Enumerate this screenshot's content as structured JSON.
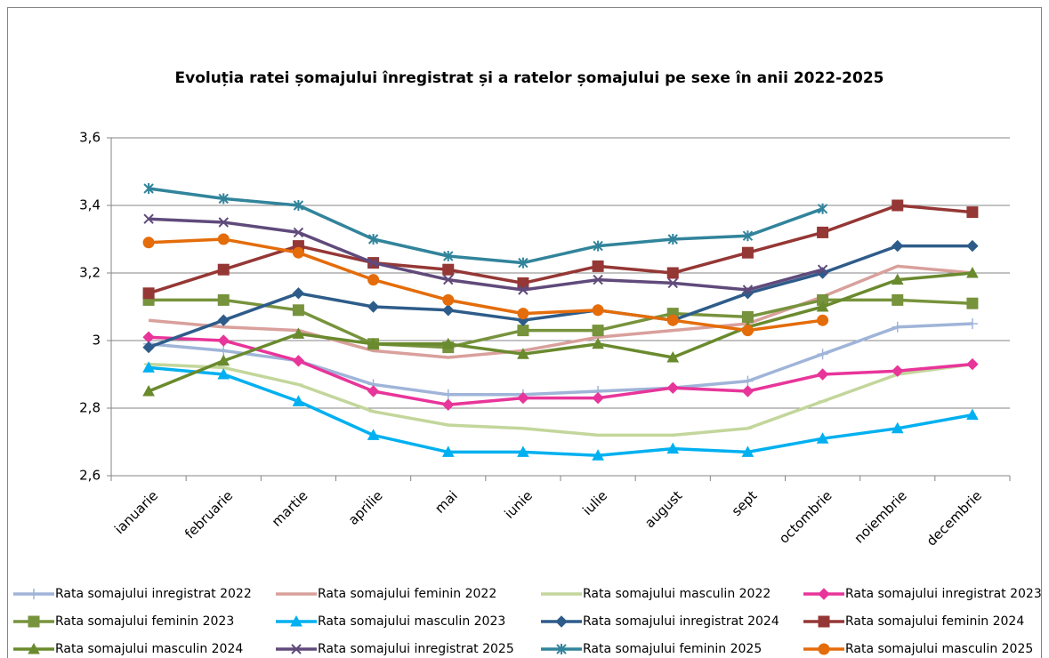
{
  "chart_data": {
    "type": "line",
    "title": "Evoluția ratei șomajului înregistrat și a ratelor șomajului pe sexe în anii 2022-2025",
    "categories": [
      "ianuarie",
      "februarie",
      "martie",
      "aprilie",
      "mai",
      "iunie",
      "iulie",
      "august",
      "sept",
      "octombrie",
      "noiembrie",
      "decembrie"
    ],
    "ylim": [
      2.6,
      3.6
    ],
    "yticks": [
      {
        "value": 2.6,
        "label": "2,6"
      },
      {
        "value": 2.8,
        "label": "2,8"
      },
      3,
      {
        "value": 3.2,
        "label": "3,2"
      },
      {
        "value": 3.4,
        "label": "3,4"
      },
      {
        "value": 3.6,
        "label": "3,6"
      }
    ],
    "grid": true,
    "legend": "bottom",
    "series": [
      {
        "name": "Rata somajului inregistrat 2022",
        "color": "#9fb4d8",
        "marker": "plus",
        "values": [
          2.99,
          2.97,
          2.94,
          2.87,
          2.84,
          2.84,
          2.85,
          2.86,
          2.88,
          2.96,
          3.04,
          3.05
        ]
      },
      {
        "name": "Rata somajului feminin 2022",
        "color": "#d9a09c",
        "marker": "none",
        "values": [
          3.06,
          3.04,
          3.03,
          2.97,
          2.95,
          2.97,
          3.01,
          3.03,
          3.05,
          3.13,
          3.22,
          3.2
        ]
      },
      {
        "name": "Rata somajului masculin 2022",
        "color": "#c3d69b",
        "marker": "dash",
        "values": [
          2.93,
          2.92,
          2.87,
          2.79,
          2.75,
          2.74,
          2.72,
          2.72,
          2.74,
          2.82,
          2.9,
          2.93
        ]
      },
      {
        "name": "Rata somajului inregistrat 2023",
        "color": "#e8359a",
        "marker": "diamond",
        "values": [
          3.01,
          3.0,
          2.94,
          2.85,
          2.81,
          2.83,
          2.83,
          2.86,
          2.85,
          2.9,
          2.91,
          2.93
        ]
      },
      {
        "name": "Rata somajului feminin 2023",
        "color": "#77933c",
        "marker": "square",
        "values": [
          3.12,
          3.12,
          3.09,
          2.99,
          2.98,
          3.03,
          3.03,
          3.08,
          3.07,
          3.12,
          3.12,
          3.11
        ]
      },
      {
        "name": "Rata somajului masculin 2023",
        "color": "#00b0f0",
        "marker": "triangle",
        "values": [
          2.92,
          2.9,
          2.82,
          2.72,
          2.67,
          2.67,
          2.66,
          2.68,
          2.67,
          2.71,
          2.74,
          2.78
        ]
      },
      {
        "name": "Rata somajului inregistrat 2024",
        "color": "#2e5c8a",
        "marker": "diamond",
        "values": [
          2.98,
          3.06,
          3.14,
          3.1,
          3.09,
          3.06,
          3.09,
          3.06,
          3.14,
          3.2,
          3.28,
          3.28
        ]
      },
      {
        "name": "Rata somajului feminin 2024",
        "color": "#953735",
        "marker": "square",
        "values": [
          3.14,
          3.21,
          3.28,
          3.23,
          3.21,
          3.17,
          3.22,
          3.2,
          3.26,
          3.32,
          3.4,
          3.38
        ]
      },
      {
        "name": "Rata somajului masculin 2024",
        "color": "#6a8a2e",
        "marker": "triangle",
        "values": [
          2.85,
          2.94,
          3.02,
          2.99,
          2.99,
          2.96,
          2.99,
          2.95,
          3.04,
          3.1,
          3.18,
          3.2
        ]
      },
      {
        "name": "Rata somajului inregistrat 2025",
        "color": "#604a7b",
        "marker": "x",
        "values": [
          3.36,
          3.35,
          3.32,
          3.23,
          3.18,
          3.15,
          3.18,
          3.17,
          3.15,
          3.21,
          null,
          null
        ]
      },
      {
        "name": "Rata somajului feminin 2025",
        "color": "#31849b",
        "marker": "star",
        "values": [
          3.45,
          3.42,
          3.4,
          3.3,
          3.25,
          3.23,
          3.28,
          3.3,
          3.31,
          3.39,
          null,
          null
        ]
      },
      {
        "name": "Rata somajului masculin 2025",
        "color": "#e46c0a",
        "marker": "circle",
        "values": [
          3.29,
          3.3,
          3.26,
          3.18,
          3.12,
          3.08,
          3.09,
          3.06,
          3.03,
          3.06,
          null,
          null
        ]
      }
    ]
  }
}
